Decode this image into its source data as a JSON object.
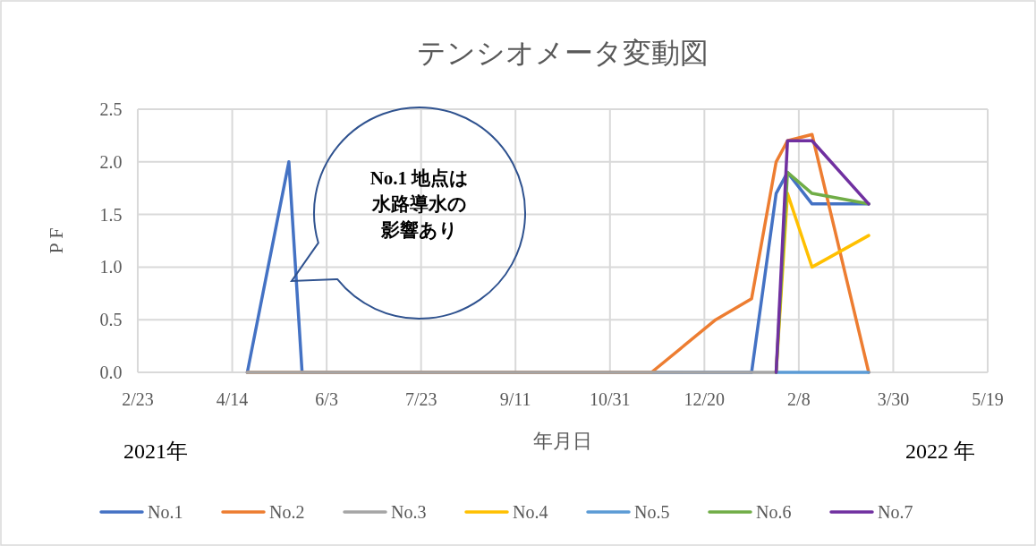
{
  "chart_data": {
    "type": "line",
    "title": "テンシオメータ変動図",
    "xlabel": "年月日",
    "ylabel": "P F",
    "xlim": [
      "2021-02-23",
      "2022-05-19"
    ],
    "xticks": [
      {
        "value": "2021-02-23",
        "label": "2/23"
      },
      {
        "value": "2021-04-14",
        "label": "4/14"
      },
      {
        "value": "2021-06-03",
        "label": "6/3"
      },
      {
        "value": "2021-07-23",
        "label": "7/23"
      },
      {
        "value": "2021-09-11",
        "label": "9/11"
      },
      {
        "value": "2021-10-31",
        "label": "10/31"
      },
      {
        "value": "2021-12-20",
        "label": "12/20"
      },
      {
        "value": "2022-02-08",
        "label": "2/8"
      },
      {
        "value": "2022-03-30",
        "label": "3/30"
      },
      {
        "value": "2022-05-19",
        "label": "5/19"
      }
    ],
    "ylim": [
      0,
      2.5
    ],
    "yticks": [
      {
        "value": 0,
        "label": "0.0"
      },
      {
        "value": 0.5,
        "label": "0.5"
      },
      {
        "value": 1,
        "label": "1.0"
      },
      {
        "value": 1.5,
        "label": "1.5"
      },
      {
        "value": 2,
        "label": "2.0"
      },
      {
        "value": 2.5,
        "label": "2.5"
      }
    ],
    "grid": true,
    "legend": "bottom",
    "marker": "none",
    "line_style": "solid",
    "series": [
      {
        "name": "No.1",
        "color": "#4472c4",
        "x": [
          "2021-04-22",
          "2021-05-14",
          "2021-05-21",
          "2022-01-14",
          "2022-01-27",
          "2022-02-02",
          "2022-02-15",
          "2022-03-17"
        ],
        "values": [
          0,
          2.0,
          0,
          0,
          1.7,
          1.9,
          1.6,
          1.6
        ]
      },
      {
        "name": "No.2",
        "color": "#ed7d31",
        "x": [
          "2021-04-22",
          "2021-11-22",
          "2021-12-26",
          "2022-01-14",
          "2022-01-27",
          "2022-02-02",
          "2022-02-15",
          "2022-03-17"
        ],
        "values": [
          0,
          0,
          0.5,
          0.7,
          2.0,
          2.2,
          2.26,
          0
        ]
      },
      {
        "name": "No.3",
        "color": "#a5a5a5",
        "x": [
          "2021-04-22",
          "2022-01-27"
        ],
        "values": [
          0,
          0
        ]
      },
      {
        "name": "No.4",
        "color": "#ffc000",
        "x": [
          "2022-01-27",
          "2022-02-02",
          "2022-02-15",
          "2022-03-17"
        ],
        "values": [
          0,
          1.7,
          1.0,
          1.3
        ]
      },
      {
        "name": "No.5",
        "color": "#5b9bd5",
        "x": [
          "2022-01-27",
          "2022-03-17"
        ],
        "values": [
          0,
          0
        ]
      },
      {
        "name": "No.6",
        "color": "#70ad47",
        "x": [
          "2022-01-27",
          "2022-02-02",
          "2022-02-15",
          "2022-03-17"
        ],
        "values": [
          0,
          1.9,
          1.7,
          1.6
        ]
      },
      {
        "name": "No.7",
        "color": "#7030a0",
        "x": [
          "2022-01-27",
          "2022-02-02",
          "2022-02-15",
          "2022-03-17"
        ],
        "values": [
          0,
          2.2,
          2.2,
          1.6
        ]
      }
    ],
    "annotations": [
      "No.1 地点は水路導水の影響あり",
      "2021年",
      "2022 年"
    ]
  }
}
